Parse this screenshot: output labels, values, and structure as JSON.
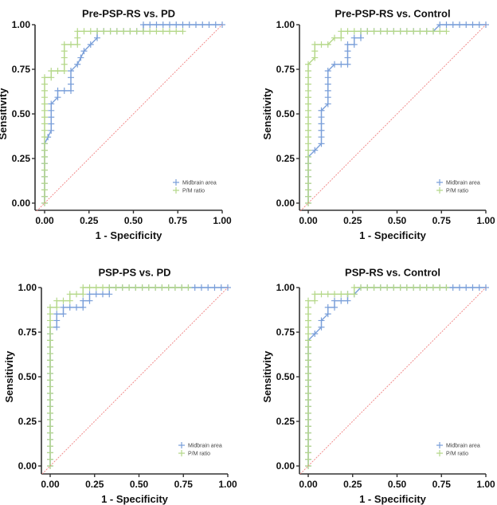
{
  "figure": {
    "legend": {
      "items": [
        {
          "label": "Midbrain area",
          "color": "#7a9fd9"
        },
        {
          "label": "P/M ratio",
          "color": "#b5d88a"
        }
      ],
      "placement": "bottom-right"
    },
    "reference_line_color": "#f08080"
  },
  "chart_data": [
    {
      "type": "line",
      "title": "Pre-PSP-RS vs. PD",
      "xlabel": "1 - Specificity",
      "ylabel": "Sensitivity",
      "xlim": [
        0,
        1
      ],
      "ylim": [
        0,
        1
      ],
      "xticks": [
        "0.00",
        "0.25",
        "0.50",
        "0.75",
        "1.00"
      ],
      "yticks": [
        "0.00",
        "0.25",
        "0.50",
        "0.75",
        "1.00"
      ],
      "series": [
        {
          "name": "Midbrain area",
          "x": [
            0,
            0,
            0.037,
            0.037,
            0.074,
            0.074,
            0.148,
            0.148,
            0.185,
            0.222,
            0.259,
            0.296,
            0.296,
            0.556,
            0.556,
            1.0
          ],
          "y": [
            0,
            0.333,
            0.407,
            0.556,
            0.593,
            0.63,
            0.63,
            0.741,
            0.778,
            0.852,
            0.889,
            0.926,
            0.963,
            0.963,
            1.0,
            1.0
          ]
        },
        {
          "name": "P/M ratio",
          "x": [
            0,
            0,
            0.037,
            0.037,
            0.111,
            0.111,
            0.185,
            0.185,
            0.778
          ],
          "y": [
            0,
            0.704,
            0.704,
            0.741,
            0.741,
            0.889,
            0.889,
            0.963,
            0.963
          ]
        },
        {
          "name": "Reference",
          "x": [
            0,
            1
          ],
          "y": [
            0,
            1
          ]
        }
      ]
    },
    {
      "type": "line",
      "title": "Pre-PSP-RS vs. Control",
      "xlabel": "1 - Specificity",
      "ylabel": "Sensitivity",
      "xlim": [
        0,
        1
      ],
      "ylim": [
        0,
        1
      ],
      "xticks": [
        "0.00",
        "0.25",
        "0.50",
        "0.75",
        "1.00"
      ],
      "yticks": [
        "0.00",
        "0.25",
        "0.50",
        "0.75",
        "1.00"
      ],
      "series": [
        {
          "name": "Midbrain area",
          "x": [
            0,
            0,
            0.037,
            0.074,
            0.074,
            0.111,
            0.111,
            0.148,
            0.222,
            0.222,
            0.259,
            0.259,
            0.296,
            0.296,
            0.704,
            0.741,
            1.0
          ],
          "y": [
            0,
            0.259,
            0.296,
            0.333,
            0.519,
            0.556,
            0.741,
            0.778,
            0.778,
            0.889,
            0.889,
            0.926,
            0.926,
            0.963,
            0.963,
            1.0,
            1.0
          ]
        },
        {
          "name": "P/M ratio",
          "x": [
            0,
            0,
            0.037,
            0.037,
            0.111,
            0.148,
            0.185,
            0.185,
            0.778
          ],
          "y": [
            0,
            0.778,
            0.815,
            0.889,
            0.889,
            0.926,
            0.926,
            0.963,
            0.963
          ]
        },
        {
          "name": "Reference",
          "x": [
            0,
            1
          ],
          "y": [
            0,
            1
          ]
        }
      ]
    },
    {
      "type": "line",
      "title": "PSP-PS vs. PD",
      "xlabel": "1 - Specificity",
      "ylabel": "Sensitivity",
      "xlim": [
        0,
        1
      ],
      "ylim": [
        0,
        1
      ],
      "xticks": [
        "0.00",
        "0.25",
        "0.50",
        "0.75",
        "1.00"
      ],
      "yticks": [
        "0.00",
        "0.25",
        "0.50",
        "0.75",
        "1.00"
      ],
      "series": [
        {
          "name": "Midbrain area",
          "x": [
            0,
            0,
            0.037,
            0.037,
            0.074,
            0.074,
            0.185,
            0.185,
            0.222,
            0.222,
            0.333,
            0.333,
            1.0
          ],
          "y": [
            0,
            0.778,
            0.778,
            0.852,
            0.852,
            0.889,
            0.889,
            0.926,
            0.926,
            0.963,
            0.963,
            1.0,
            1.0
          ]
        },
        {
          "name": "P/M ratio",
          "x": [
            0,
            0,
            0.037,
            0.037,
            0.111,
            0.111,
            0.185,
            0.185,
            0.778
          ],
          "y": [
            0,
            0.889,
            0.889,
            0.926,
            0.926,
            0.963,
            0.963,
            1.0,
            1.0
          ]
        },
        {
          "name": "Reference",
          "x": [
            0,
            1
          ],
          "y": [
            0,
            1
          ]
        }
      ]
    },
    {
      "type": "line",
      "title": "PSP-RS vs. Control",
      "xlabel": "1 - Specificity",
      "ylabel": "Sensitivity",
      "xlim": [
        0,
        1
      ],
      "ylim": [
        0,
        1
      ],
      "xticks": [
        "0.00",
        "0.25",
        "0.50",
        "0.75",
        "1.00"
      ],
      "yticks": [
        "0.00",
        "0.25",
        "0.50",
        "0.75",
        "1.00"
      ],
      "series": [
        {
          "name": "Midbrain area",
          "x": [
            0,
            0,
            0.037,
            0.074,
            0.074,
            0.111,
            0.111,
            0.148,
            0.148,
            0.222,
            0.222,
            0.259,
            0.296,
            1.0
          ],
          "y": [
            0,
            0.704,
            0.741,
            0.778,
            0.815,
            0.852,
            0.889,
            0.889,
            0.926,
            0.926,
            0.963,
            0.963,
            1.0,
            1.0
          ]
        },
        {
          "name": "P/M ratio",
          "x": [
            0,
            0,
            0.037,
            0.037,
            0.185,
            0.259,
            0.259,
            0.778
          ],
          "y": [
            0,
            0.926,
            0.926,
            0.963,
            0.963,
            0.963,
            1.0,
            1.0
          ]
        },
        {
          "name": "Reference",
          "x": [
            0,
            1
          ],
          "y": [
            0,
            1
          ]
        }
      ]
    }
  ]
}
